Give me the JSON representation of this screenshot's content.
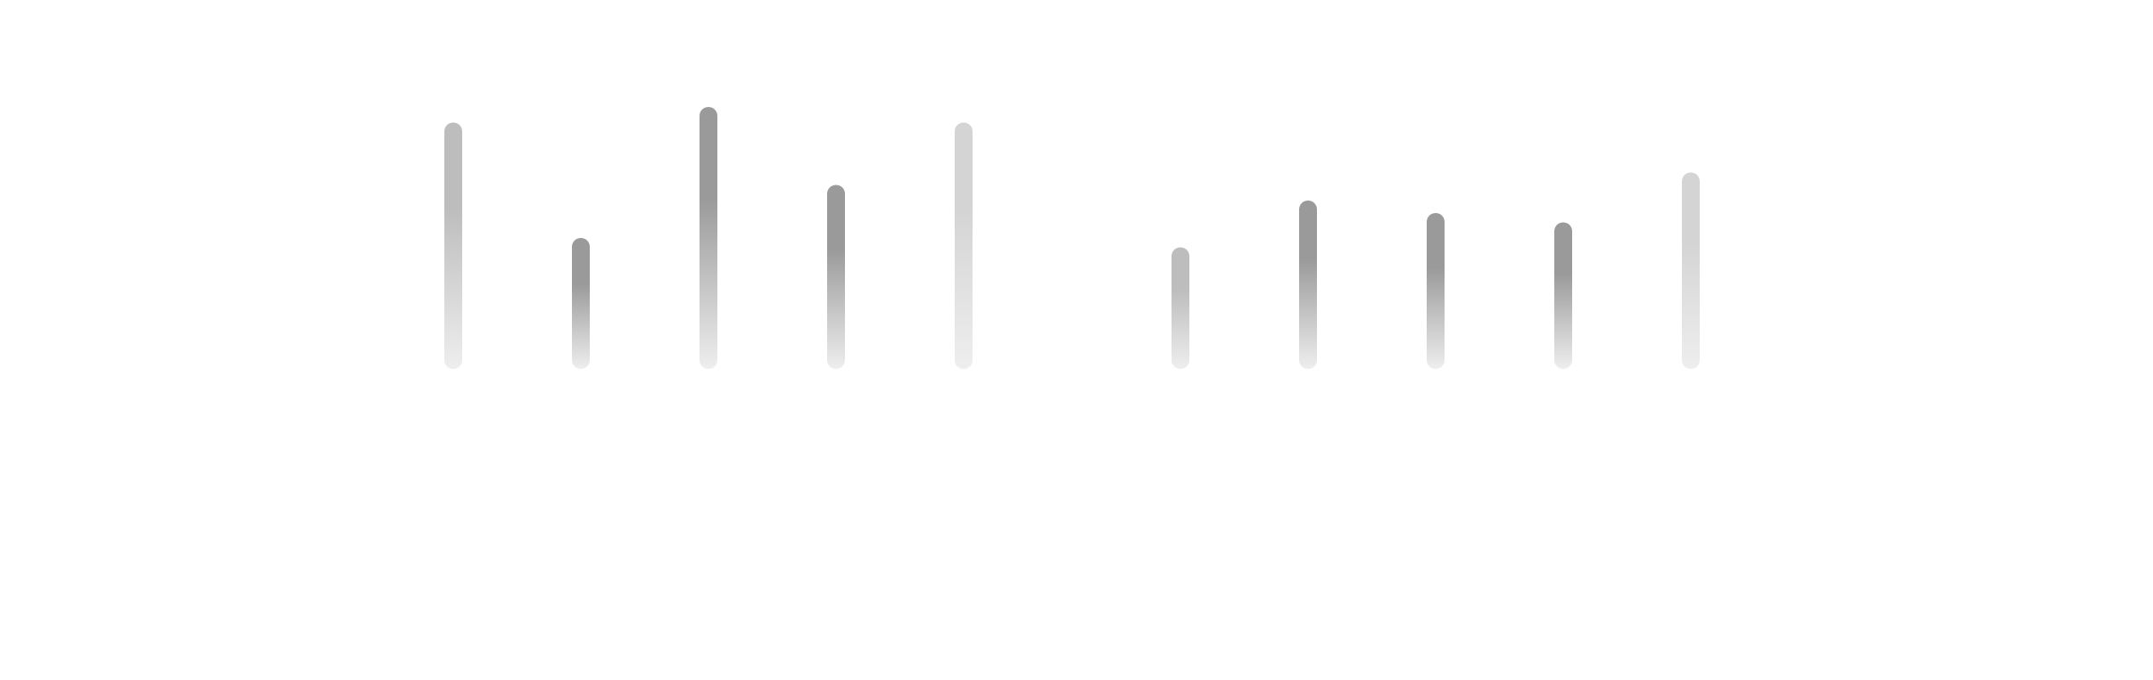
{
  "chart_data": {
    "type": "bar",
    "style": "thin rounded vertical bars with vertical gradient fill (darker at top/middle, fading to light at bottom)",
    "groups": 2,
    "grid": false,
    "legend": "none",
    "series": [
      {
        "values": [
          0.79,
          0.42,
          0.84,
          0.59,
          0.79
        ]
      },
      {
        "values": [
          0.39,
          0.54,
          0.5,
          0.47,
          0.63
        ]
      }
    ],
    "ylim": [
      0,
      1
    ],
    "colors": {
      "bar_top_dark": "#9a9a9a",
      "bar_top_mid": "#bdbdbd",
      "bar_top_light": "#d4d4d4",
      "bar_bottom": "#eeeeee",
      "background": "#ffffff"
    },
    "bar_shades": [
      [
        "mid",
        "dark",
        "dark",
        "dark",
        "light"
      ],
      [
        "mid",
        "dark",
        "dark",
        "dark",
        "light"
      ]
    ]
  }
}
